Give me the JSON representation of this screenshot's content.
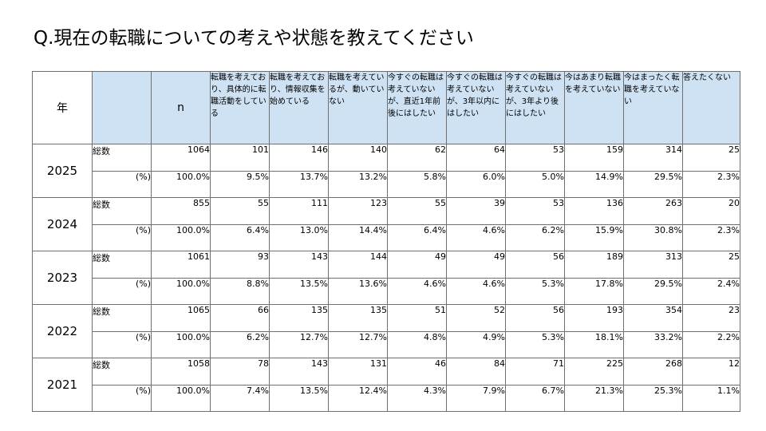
{
  "page": {
    "title": "Q.現在の転職についての考えや状態を教えてください"
  },
  "table": {
    "year_header": "年",
    "n_header": "n",
    "columns": [
      "転職を考えており、具体的に転職活動をしている",
      "転職を考えており、情報収集を始めている",
      "転職を考えているが、動いていない",
      "今すぐの転職は考えていないが、直近1年前後にはしたい",
      "今すぐの転職は考えていないが、3年以内にはしたい",
      "今すぐの転職は考えていないが、3年より後にはしたい",
      "今はあまり転職を考えていない",
      "今はまったく転職を考えていない",
      "答えたくない"
    ],
    "count_label": "総数",
    "pct_label": "(%)",
    "rows": [
      {
        "year": "2025",
        "n": "1064",
        "counts": [
          "101",
          "146",
          "140",
          "62",
          "64",
          "53",
          "159",
          "314",
          "25"
        ],
        "n_pct": "100.0%",
        "pcts": [
          "9.5%",
          "13.7%",
          "13.2%",
          "5.8%",
          "6.0%",
          "5.0%",
          "14.9%",
          "29.5%",
          "2.3%"
        ]
      },
      {
        "year": "2024",
        "n": "855",
        "counts": [
          "55",
          "111",
          "123",
          "55",
          "39",
          "53",
          "136",
          "263",
          "20"
        ],
        "n_pct": "100.0%",
        "pcts": [
          "6.4%",
          "13.0%",
          "14.4%",
          "6.4%",
          "4.6%",
          "6.2%",
          "15.9%",
          "30.8%",
          "2.3%"
        ]
      },
      {
        "year": "2023",
        "n": "1061",
        "counts": [
          "93",
          "143",
          "144",
          "49",
          "49",
          "56",
          "189",
          "313",
          "25"
        ],
        "n_pct": "100.0%",
        "pcts": [
          "8.8%",
          "13.5%",
          "13.6%",
          "4.6%",
          "4.6%",
          "5.3%",
          "17.8%",
          "29.5%",
          "2.4%"
        ]
      },
      {
        "year": "2022",
        "n": "1065",
        "counts": [
          "66",
          "135",
          "135",
          "51",
          "52",
          "56",
          "193",
          "354",
          "23"
        ],
        "n_pct": "100.0%",
        "pcts": [
          "6.2%",
          "12.7%",
          "12.7%",
          "4.8%",
          "4.9%",
          "5.3%",
          "18.1%",
          "33.2%",
          "2.2%"
        ]
      },
      {
        "year": "2021",
        "n": "1058",
        "counts": [
          "78",
          "143",
          "131",
          "46",
          "84",
          "71",
          "225",
          "268",
          "12"
        ],
        "n_pct": "100.0%",
        "pcts": [
          "7.4%",
          "13.5%",
          "12.4%",
          "4.3%",
          "7.9%",
          "6.7%",
          "21.3%",
          "25.3%",
          "1.1%"
        ]
      }
    ]
  }
}
